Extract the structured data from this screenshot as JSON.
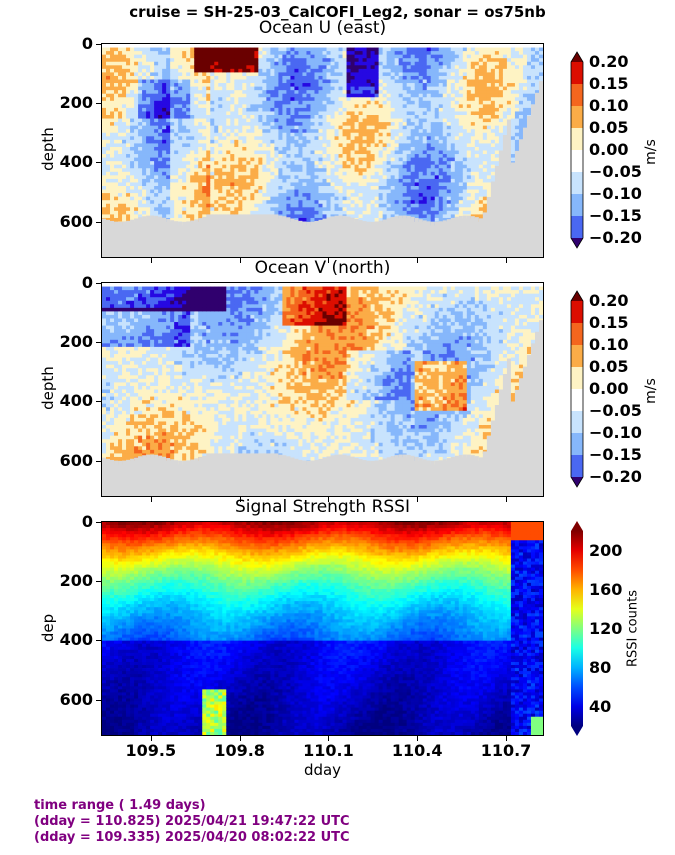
{
  "suptitle": "cruise = SH-25-03_CalCOFI_Leg2,  sonar = os75nb",
  "chart_data": [
    {
      "type": "heatmap",
      "title": "Ocean U (east)",
      "xlabel": "",
      "ylabel": "depth",
      "yticks": [
        "0",
        "200",
        "400",
        "600"
      ],
      "xticks": [
        "109.5",
        "109.8",
        "110.1",
        "110.4",
        "110.7"
      ],
      "xlim": [
        109.335,
        110.825
      ],
      "ylim": [
        720,
        0
      ],
      "colorbar_label": "m/s",
      "colorbar_ticks": [
        "0.20",
        "0.15",
        "0.10",
        "0.05",
        "0.00",
        "−0.05",
        "−0.10",
        "−0.15",
        "−0.20"
      ],
      "colors": [
        "#dc0e00",
        "#f4661e",
        "#fbac47",
        "#fef3c4",
        "#ffffff",
        "#c8e3fd",
        "#86b7fb",
        "#4a68f2",
        "#2608e2"
      ],
      "extremes": [
        "#6a0000",
        "#30006e"
      ]
    },
    {
      "type": "heatmap",
      "title": "Ocean V (north)",
      "xlabel": "",
      "ylabel": "depth",
      "yticks": [
        "0",
        "200",
        "400",
        "600"
      ],
      "xticks": [
        "109.5",
        "109.8",
        "110.1",
        "110.4",
        "110.7"
      ],
      "xlim": [
        109.335,
        110.825
      ],
      "ylim": [
        720,
        0
      ],
      "colorbar_label": "m/s",
      "colorbar_ticks": [
        "0.20",
        "0.15",
        "0.10",
        "0.05",
        "0.00",
        "−0.05",
        "−0.10",
        "−0.15",
        "−0.20"
      ],
      "colors": [
        "#dc0e00",
        "#f4661e",
        "#fbac47",
        "#fef3c4",
        "#ffffff",
        "#c8e3fd",
        "#86b7fb",
        "#4a68f2",
        "#2608e2"
      ],
      "extremes": [
        "#6a0000",
        "#30006e"
      ]
    },
    {
      "type": "heatmap",
      "title": "Signal Strength RSSI",
      "xlabel": "dday",
      "ylabel": "dep",
      "yticks": [
        "0",
        "200",
        "400",
        "600"
      ],
      "xticks": [
        "109.5",
        "109.8",
        "110.1",
        "110.4",
        "110.7"
      ],
      "xlim": [
        109.335,
        110.825
      ],
      "ylim": [
        720,
        0
      ],
      "colorbar_label": "RSSI counts",
      "colorbar_ticks": [
        "200",
        "160",
        "120",
        "80",
        "40"
      ],
      "colormap": "jet"
    }
  ],
  "footer": {
    "line1": "time range ( 1.49 days)",
    "line2": "(dday = 110.825) 2025/04/21 19:47:22 UTC",
    "line3": "(dday = 109.335) 2025/04/20 08:02:22 UTC"
  }
}
